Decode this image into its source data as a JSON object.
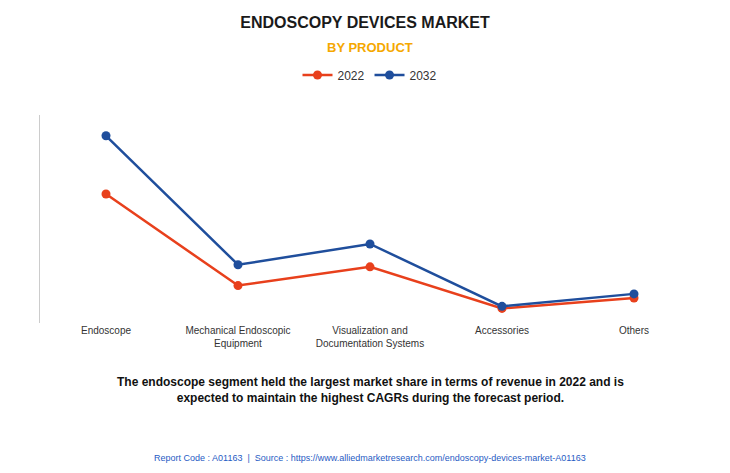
{
  "chart_data": {
    "type": "line",
    "title": "ENDOSCOPY DEVICES MARKET",
    "subtitle": "BY PRODUCT",
    "categories": [
      "Endoscope",
      "Mechanical Endoscopic\nEquipment",
      "Visualization and\nDocumentation Systems",
      "Accessories",
      "Others"
    ],
    "series": [
      {
        "name": "2022",
        "color": "#e8401c",
        "values": [
          62,
          18,
          27,
          7,
          12
        ]
      },
      {
        "name": "2032",
        "color": "#1f4e9c",
        "values": [
          90,
          28,
          38,
          8,
          14
        ]
      }
    ],
    "annotations": [
      "The endoscope segment held the largest market share in terms of revenue in 2022 and is\nexpected to maintain the highest CAGRs during the forecast period.",
      "Report Code : A01163  |  Source : https://www.alliedmarketresearch.com/endoscopy-devices-market-A01163"
    ],
    "ylim": [
      0,
      100
    ],
    "yticks": [],
    "tick_labels": "x",
    "grid": false,
    "legend": "top",
    "marker": "circle"
  }
}
